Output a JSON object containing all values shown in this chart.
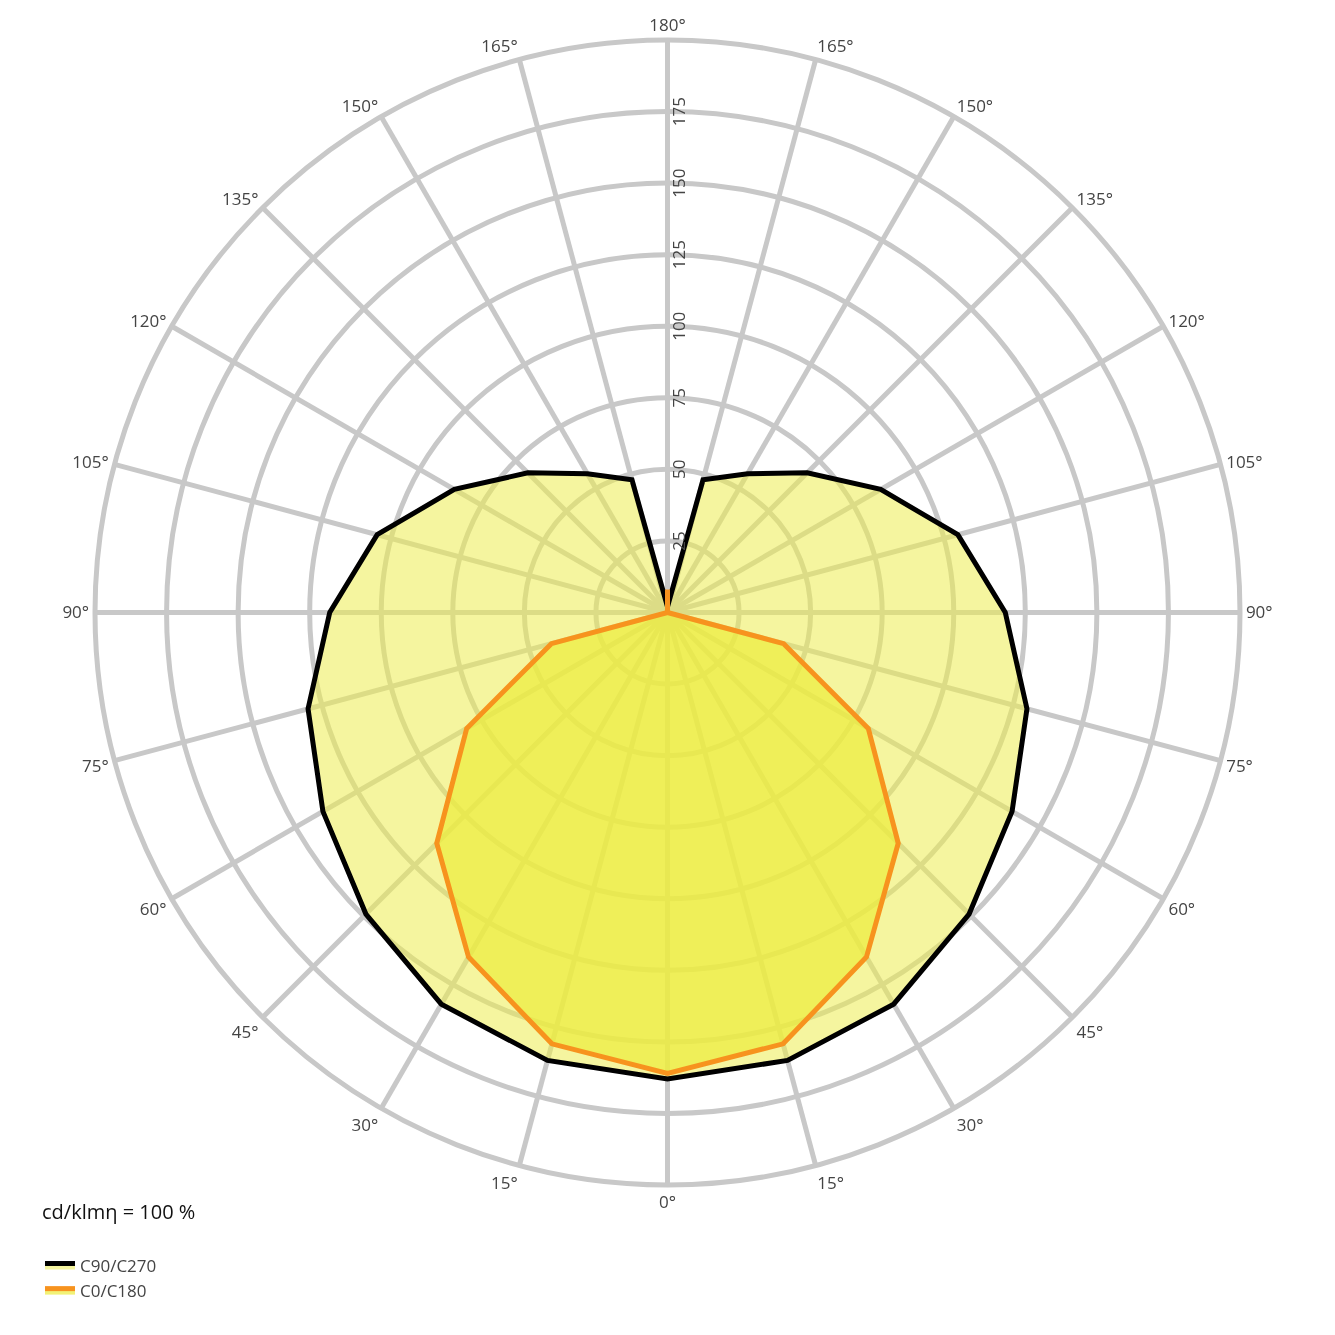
{
  "chart_data": {
    "type": "radar",
    "categories": [
      "180°",
      "165°",
      "150°",
      "135°",
      "120°",
      "105°",
      "90°",
      "75°",
      "60°",
      "45°",
      "30°",
      "15°",
      "0°",
      "15°",
      "30°",
      "45°",
      "60°",
      "75°",
      "90°",
      "105°",
      "120°",
      "135°",
      "150°",
      "165°"
    ],
    "series": [
      {
        "name": "C90/C270",
        "color": "#000000",
        "values": [
          2,
          48,
          56,
          69,
          86,
          105,
          118,
          130,
          139,
          149,
          158,
          162,
          163,
          162,
          158,
          149,
          139,
          130,
          118,
          105,
          86,
          69,
          56,
          48
        ]
      },
      {
        "name": "C0/C180",
        "color": "#f7931e",
        "values": [
          8,
          0,
          0,
          0,
          0,
          0,
          0,
          42,
          81,
          114,
          139,
          156,
          161,
          156,
          139,
          114,
          81,
          42,
          0,
          0,
          0,
          0,
          0,
          0
        ]
      }
    ],
    "ylim": [
      0,
      200
    ],
    "yticks": [
      25,
      50,
      75,
      100,
      125,
      150,
      175
    ],
    "grid": true,
    "legend": "bottom left",
    "marker": "none",
    "line_style": "solid",
    "annotations": [
      "cd/klmη = 100 %"
    ]
  }
}
